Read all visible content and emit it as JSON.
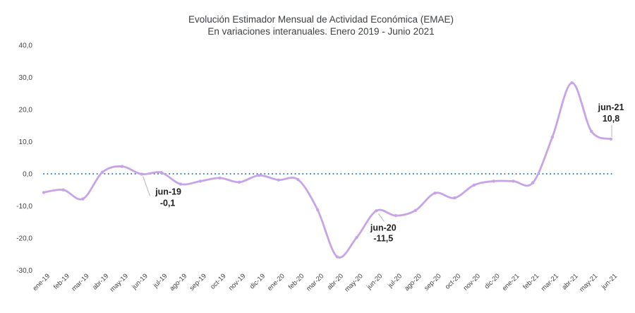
{
  "chart_data": {
    "type": "line",
    "title": "Evolución Estimador Mensual de Actividad Económica (EMAE)",
    "subtitle": "En variaciones interanuales. Enero 2019 - Junio 2021",
    "xlabel": "",
    "ylabel": "",
    "categories": [
      "ene-19",
      "feb-19",
      "mar-19",
      "abr-19",
      "may-19",
      "jun-19",
      "jul-19",
      "ago-19",
      "sep-19",
      "oct-19",
      "nov-19",
      "dic-19",
      "ene-20",
      "feb-20",
      "mar-20",
      "abr-20",
      "may-20",
      "jun-20",
      "jul-20",
      "ago-20",
      "sep-20",
      "oct-20",
      "nov-20",
      "dic-20",
      "ene-21",
      "feb-21",
      "mar-21",
      "abr-21",
      "may-21",
      "jun-21"
    ],
    "values": [
      -5.8,
      -5.0,
      -7.8,
      0.5,
      2.3,
      -0.1,
      0.4,
      -3.2,
      -2.3,
      -1.3,
      -2.6,
      -0.5,
      -1.9,
      -1.8,
      -11.2,
      -25.8,
      -19.8,
      -11.5,
      -13.0,
      -11.4,
      -6.0,
      -7.5,
      -3.5,
      -2.3,
      -2.3,
      -2.8,
      11.4,
      28.3,
      13.2,
      10.8
    ],
    "ylim": [
      -30,
      40
    ],
    "ytick_values": [
      40,
      30,
      20,
      10,
      0,
      -10,
      -20,
      -30
    ],
    "ytick_labels": [
      "40,0",
      "30,0",
      "20,0",
      "10,0",
      "0,0",
      "-10,0",
      "-20,0",
      "-30,0"
    ],
    "grid": false,
    "legend": "none",
    "marker": "dot",
    "zero_reference_line": {
      "style": "dotted"
    },
    "annotations": [
      {
        "index": 5,
        "label": "jun-19",
        "value": "-0,1",
        "placement": "below-right"
      },
      {
        "index": 17,
        "label": "jun-20",
        "value": "-11,5",
        "placement": "below"
      },
      {
        "index": 29,
        "label": "jun-21",
        "value": "10,8",
        "placement": "above"
      }
    ],
    "colors": {
      "line": "#c7a4e8",
      "zero_line": "#2878bd",
      "axis_text": "#3f3f3f",
      "title_text": "#3c4043",
      "annotation_text": "#1f1f1f",
      "leader_line": "#b5b5b5",
      "background": "#ffffff"
    }
  }
}
